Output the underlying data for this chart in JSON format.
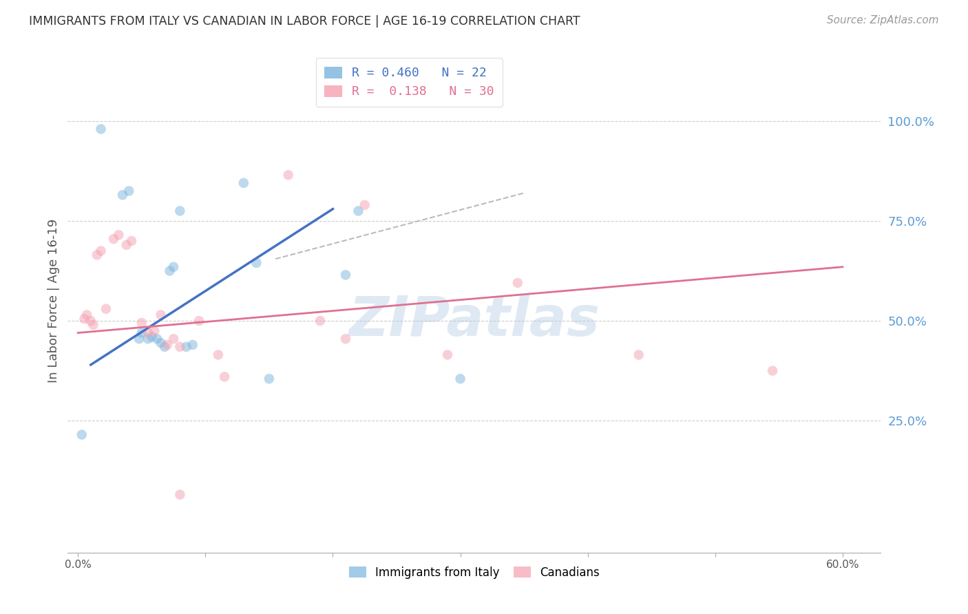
{
  "title": "IMMIGRANTS FROM ITALY VS CANADIAN IN LABOR FORCE | AGE 16-19 CORRELATION CHART",
  "source": "Source: ZipAtlas.com",
  "ylabel": "In Labor Force | Age 16-19",
  "x_tick_labels": [
    "0.0%",
    "",
    "",
    "",
    "",
    "",
    "60.0%"
  ],
  "x_tick_values": [
    0.0,
    0.1,
    0.2,
    0.3,
    0.4,
    0.5,
    0.6
  ],
  "y_tick_labels": [
    "100.0%",
    "75.0%",
    "50.0%",
    "25.0%"
  ],
  "y_tick_values": [
    1.0,
    0.75,
    0.5,
    0.25
  ],
  "xlim": [
    -0.008,
    0.63
  ],
  "ylim": [
    -0.08,
    1.18
  ],
  "legend_labels_bottom": [
    "Immigrants from Italy",
    "Canadians"
  ],
  "blue_scatter_x": [
    0.018,
    0.035,
    0.04,
    0.048,
    0.05,
    0.055,
    0.058,
    0.062,
    0.065,
    0.068,
    0.072,
    0.075,
    0.08,
    0.085,
    0.09,
    0.13,
    0.14,
    0.15,
    0.21,
    0.22,
    0.3,
    0.003
  ],
  "blue_scatter_y": [
    0.98,
    0.815,
    0.825,
    0.455,
    0.47,
    0.455,
    0.46,
    0.455,
    0.445,
    0.435,
    0.625,
    0.635,
    0.775,
    0.435,
    0.44,
    0.845,
    0.645,
    0.355,
    0.615,
    0.775,
    0.355,
    0.215
  ],
  "pink_scatter_x": [
    0.005,
    0.007,
    0.01,
    0.012,
    0.015,
    0.018,
    0.022,
    0.028,
    0.032,
    0.038,
    0.042,
    0.05,
    0.055,
    0.06,
    0.065,
    0.07,
    0.075,
    0.08,
    0.095,
    0.11,
    0.115,
    0.165,
    0.19,
    0.21,
    0.225,
    0.29,
    0.345,
    0.44,
    0.545,
    0.08
  ],
  "pink_scatter_y": [
    0.505,
    0.515,
    0.5,
    0.49,
    0.665,
    0.675,
    0.53,
    0.705,
    0.715,
    0.69,
    0.7,
    0.495,
    0.47,
    0.475,
    0.515,
    0.44,
    0.455,
    0.435,
    0.5,
    0.415,
    0.36,
    0.865,
    0.5,
    0.455,
    0.79,
    0.415,
    0.595,
    0.415,
    0.375,
    0.065
  ],
  "blue_line_x": [
    0.01,
    0.2
  ],
  "blue_line_y": [
    0.39,
    0.78
  ],
  "pink_line_x": [
    0.0,
    0.6
  ],
  "pink_line_y": [
    0.47,
    0.635
  ],
  "ref_line_x": [
    0.155,
    0.35
  ],
  "ref_line_y": [
    0.655,
    0.82
  ],
  "watermark": "ZIPatlas",
  "title_color": "#333333",
  "source_color": "#999999",
  "axis_label_color": "#555555",
  "right_axis_color": "#5b9bd5",
  "grid_color": "#cccccc",
  "blue_color": "#7ab5dc",
  "pink_color": "#f5a0b0",
  "blue_line_color": "#4472c4",
  "pink_line_color": "#e07090",
  "ref_line_color": "#bbbbbb",
  "scatter_size": 110,
  "scatter_alpha": 0.5
}
